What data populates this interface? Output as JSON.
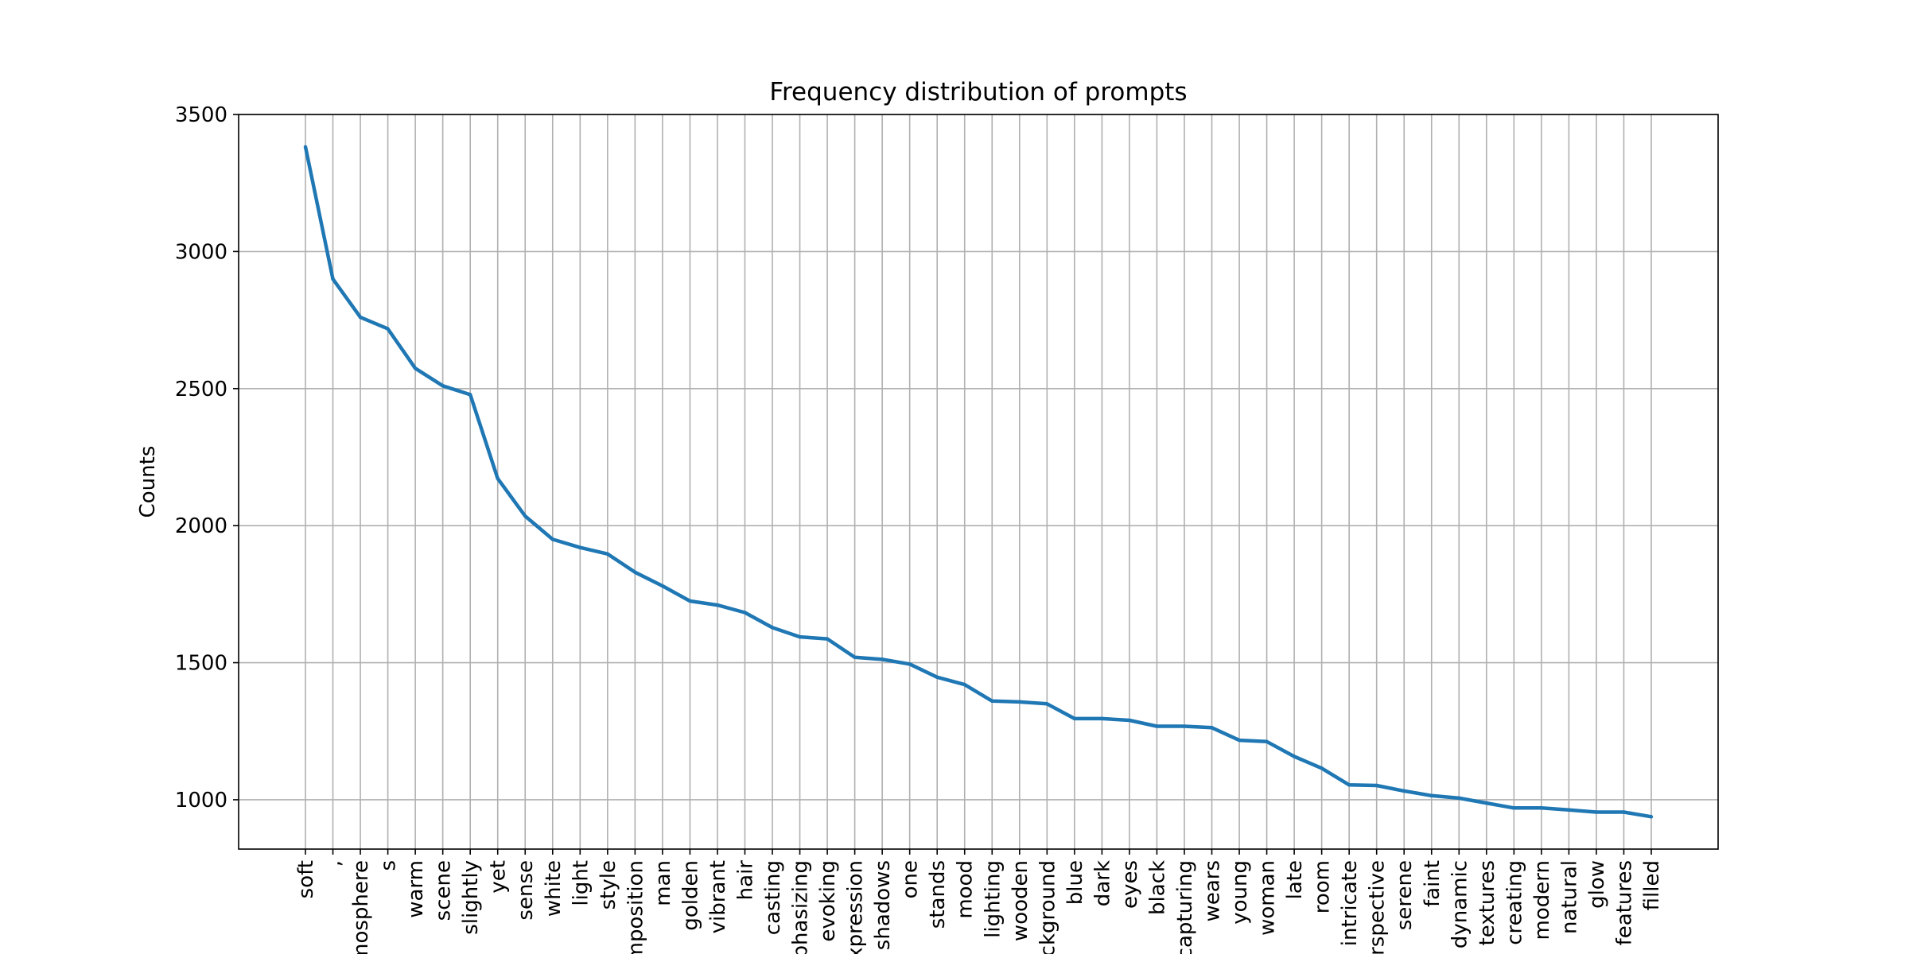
{
  "chart_data": {
    "type": "line",
    "title": "Frequency distribution of prompts",
    "xlabel": "",
    "ylabel": "Counts",
    "ylim": [
      820,
      3500
    ],
    "yticks": [
      1000,
      1500,
      2000,
      2500,
      3000,
      3500
    ],
    "grid": true,
    "line_color": "#1f77b4",
    "categories": [
      "soft",
      ",",
      "atmosphere",
      "s",
      "warm",
      "scene",
      "slightly",
      "yet",
      "sense",
      "white",
      "light",
      "style",
      "composition",
      "man",
      "golden",
      "vibrant",
      "hair",
      "casting",
      "emphasizing",
      "evoking",
      "expression",
      "shadows",
      "one",
      "stands",
      "mood",
      "lighting",
      "wooden",
      "background",
      "blue",
      "dark",
      "eyes",
      "black",
      "capturing",
      "wears",
      "young",
      "woman",
      "late",
      "room",
      "intricate",
      "perspective",
      "serene",
      "faint",
      "dynamic",
      "textures",
      "creating",
      "modern",
      "natural",
      "glow",
      "features",
      "filled"
    ],
    "values": [
      3382,
      2900,
      2760,
      2718,
      2574,
      2510,
      2478,
      2172,
      2035,
      1950,
      1920,
      1897,
      1830,
      1780,
      1725,
      1710,
      1683,
      1628,
      1594,
      1587,
      1520,
      1512,
      1495,
      1447,
      1420,
      1360,
      1357,
      1350,
      1296,
      1296,
      1290,
      1268,
      1268,
      1263,
      1217,
      1212,
      1158,
      1115,
      1054,
      1052,
      1032,
      1015,
      1006,
      988,
      970,
      970,
      963,
      955,
      955,
      938
    ]
  }
}
